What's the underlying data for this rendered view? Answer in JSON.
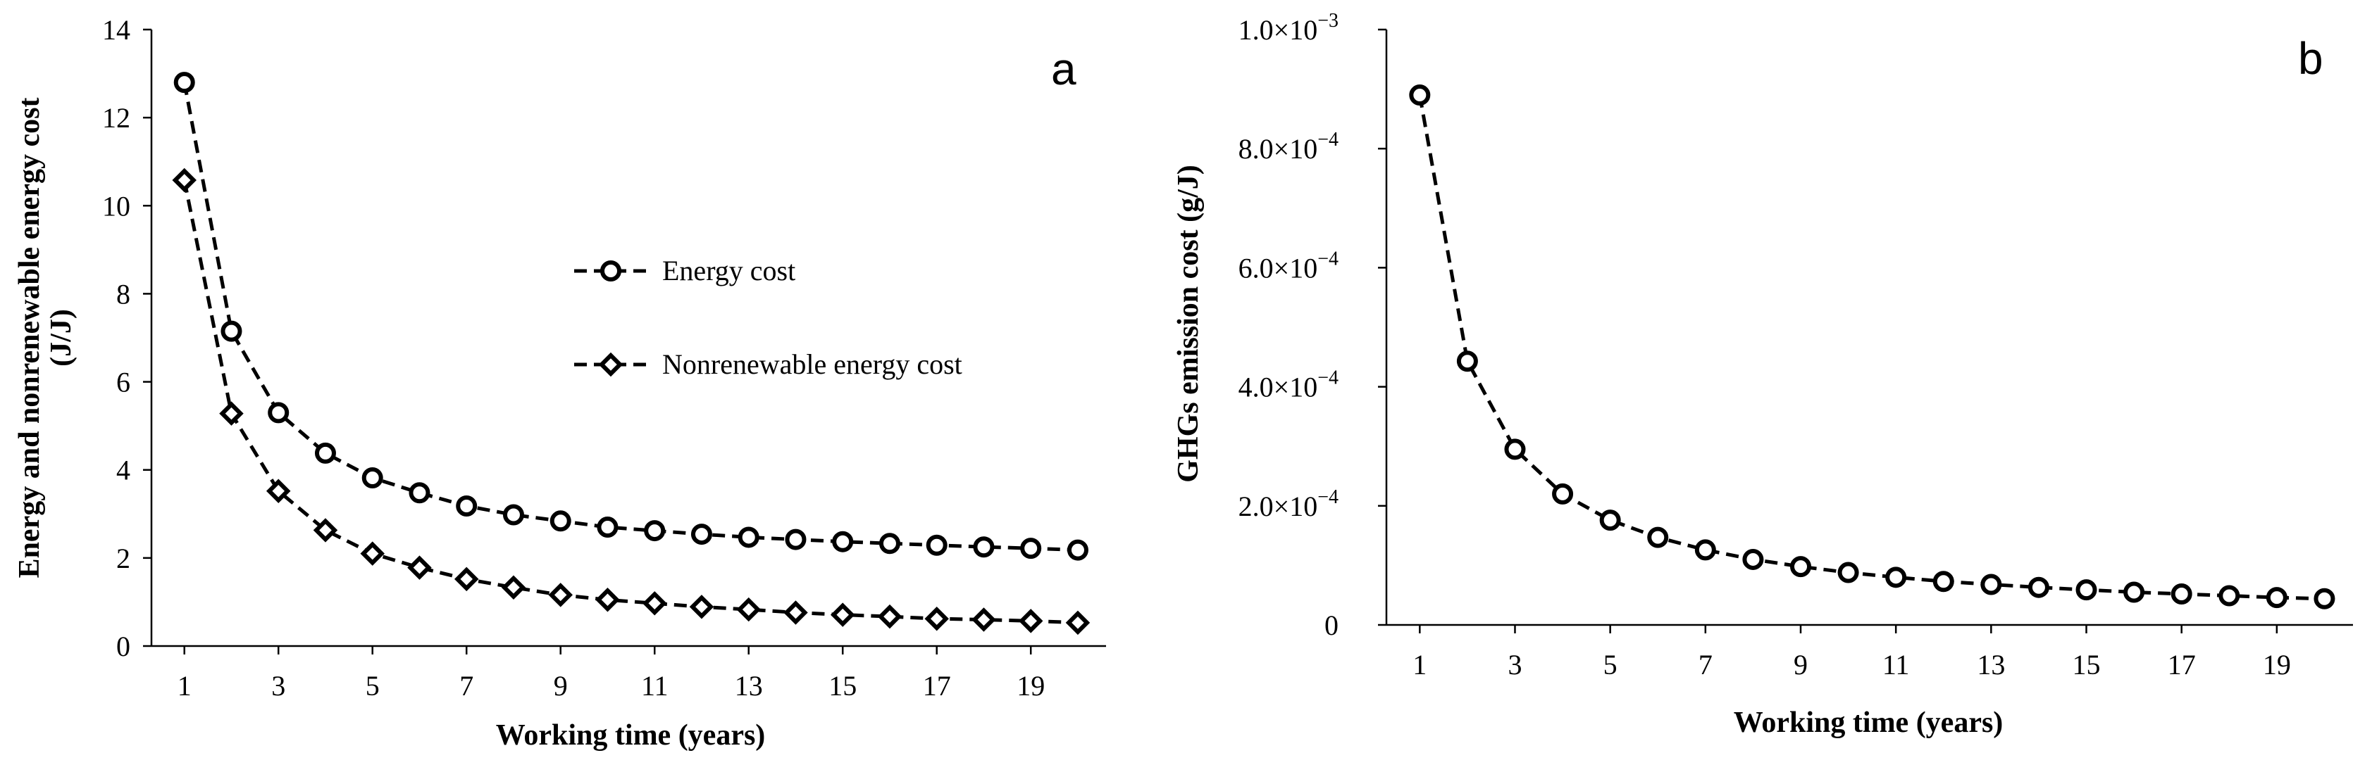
{
  "chart_data": [
    {
      "type": "line",
      "panel_label": "a",
      "xlabel": "Working time (years)",
      "ylabel_line1": "Energy and nonrenewable energy cost",
      "ylabel_line2": "(J/J)",
      "xlim": [
        0.3,
        20.6
      ],
      "ylim": [
        0,
        14
      ],
      "x_ticks": [
        1,
        3,
        5,
        7,
        9,
        11,
        13,
        15,
        17,
        19
      ],
      "y_ticks": [
        0,
        2,
        4,
        6,
        8,
        10,
        12,
        14
      ],
      "legend_position": "center-right",
      "x": [
        1,
        2,
        3,
        4,
        5,
        6,
        7,
        8,
        9,
        10,
        11,
        12,
        13,
        14,
        15,
        16,
        17,
        18,
        19,
        20
      ],
      "series": [
        {
          "name": "Energy cost",
          "marker": "circle",
          "values": [
            12.8,
            7.15,
            5.3,
            4.38,
            3.82,
            3.48,
            3.18,
            2.98,
            2.84,
            2.7,
            2.62,
            2.54,
            2.47,
            2.42,
            2.37,
            2.33,
            2.29,
            2.25,
            2.22,
            2.18
          ]
        },
        {
          "name": "Nonrenewable energy cost",
          "marker": "diamond",
          "values": [
            10.58,
            5.28,
            3.52,
            2.63,
            2.1,
            1.78,
            1.52,
            1.33,
            1.16,
            1.05,
            0.97,
            0.89,
            0.83,
            0.76,
            0.71,
            0.67,
            0.62,
            0.6,
            0.57,
            0.53
          ]
        }
      ]
    },
    {
      "type": "line",
      "panel_label": "b",
      "xlabel": "Working time (years)",
      "ylabel": "GHGs emission cost (g/J)",
      "xlim": [
        0.3,
        20.6
      ],
      "ylim": [
        0,
        0.001
      ],
      "x_ticks": [
        1,
        3,
        5,
        7,
        9,
        11,
        13,
        15,
        17,
        19
      ],
      "y_ticks": [
        {
          "value": 0,
          "label": "0"
        },
        {
          "value": 0.0002,
          "mantissa": "2.0×10",
          "exp": "−4"
        },
        {
          "value": 0.0004,
          "mantissa": "4.0×10",
          "exp": "−4"
        },
        {
          "value": 0.0006,
          "mantissa": "6.0×10",
          "exp": "−4"
        },
        {
          "value": 0.0008,
          "mantissa": "8.0×10",
          "exp": "−4"
        },
        {
          "value": 0.001,
          "mantissa": "1.0×10",
          "exp": "−3"
        }
      ],
      "x": [
        1,
        2,
        3,
        4,
        5,
        6,
        7,
        8,
        9,
        10,
        11,
        12,
        13,
        14,
        15,
        16,
        17,
        18,
        19,
        20
      ],
      "series": [
        {
          "name": "GHGs emission cost",
          "marker": "circle",
          "values": [
            0.00089,
            0.000443,
            0.000295,
            0.00022,
            0.000176,
            0.000147,
            0.000126,
            0.00011,
            9.8e-05,
            8.8e-05,
            8e-05,
            7.3e-05,
            6.8e-05,
            6.3e-05,
            5.9e-05,
            5.5e-05,
            5.2e-05,
            4.9e-05,
            4.6e-05,
            4.4e-05
          ]
        }
      ]
    }
  ]
}
